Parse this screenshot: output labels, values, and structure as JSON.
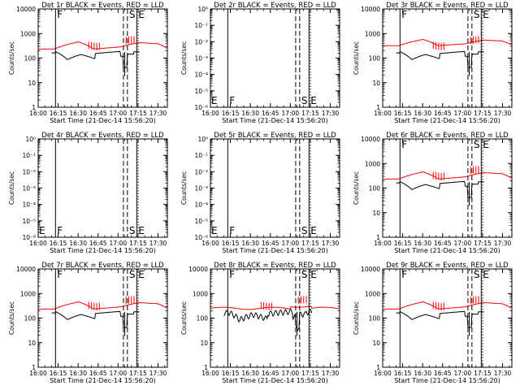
{
  "page": {
    "background": "#ffffff"
  },
  "chart_data": [
    {
      "type": "line",
      "title": "Det 1r BLACK = Events, RED = LLD",
      "xlabel": "Start Time (21-Dec-14 15:56:20)",
      "ylabel": "Counts/sec",
      "yscale": "log",
      "xlim": [
        "16:00",
        "17:37"
      ],
      "yticks": [
        "1",
        "10",
        "100",
        "1000",
        "10000"
      ],
      "ylim": [
        1,
        12000
      ],
      "xticks": [
        "16:00",
        "16:15",
        "16:30",
        "16:45",
        "17:00",
        "17:15",
        "17:30"
      ],
      "markers": [
        {
          "time": "16:13",
          "style": "solid",
          "label": "F",
          "label_pos": "top"
        },
        {
          "time": "17:04",
          "style": "dashed",
          "label": ""
        },
        {
          "time": "17:07",
          "style": "dashed",
          "label": "S",
          "label_pos": "top"
        },
        {
          "time": "17:14",
          "style": "solid",
          "label": "E",
          "label_pos": "top"
        },
        {
          "time": "17:15",
          "style": "dotted",
          "label": ""
        }
      ],
      "series": [
        {
          "color": "#ff0000",
          "profile": "lld"
        },
        {
          "color": "#000000",
          "profile": "events"
        }
      ]
    },
    {
      "type": "line",
      "title": "Det 2r BLACK = Events, RED = LLD",
      "xlabel": "Start Time (21-Dec-14 15:56:20)",
      "ylabel": "Counts/sec",
      "yscale": "log",
      "xlim": [
        "16:00",
        "17:37"
      ],
      "yticks": [
        "10⁻⁶",
        "10⁻⁵",
        "10⁻⁴",
        "10⁻³",
        "10⁻²",
        "10⁻¹",
        "10⁰"
      ],
      "ylim": [
        1e-06,
        1
      ],
      "xticks": [
        "16:00",
        "16:15",
        "16:30",
        "16:45",
        "17:00",
        "17:15",
        "17:30"
      ],
      "corner_label": "E",
      "markers": [
        {
          "time": "16:13",
          "style": "solid",
          "label": "F",
          "label_pos": "bottom"
        },
        {
          "time": "17:04",
          "style": "dashed",
          "label": ""
        },
        {
          "time": "17:07",
          "style": "dashed",
          "label": "S",
          "label_pos": "bottom"
        },
        {
          "time": "17:14",
          "style": "solid",
          "label": "E",
          "label_pos": "bottom"
        },
        {
          "time": "17:15",
          "style": "dotted",
          "label": ""
        }
      ],
      "series": []
    },
    {
      "type": "line",
      "title": "Det 3r BLACK = Events, RED = LLD",
      "xlabel": "Start Time (21-Dec-14 15:56:20)",
      "ylabel": "Counts/sec",
      "yscale": "log",
      "xlim": [
        "16:00",
        "17:37"
      ],
      "yticks": [
        "1",
        "10",
        "100",
        "1000",
        "10000"
      ],
      "ylim": [
        1,
        12000
      ],
      "xticks": [
        "16:00",
        "16:15",
        "16:30",
        "16:45",
        "17:00",
        "17:15",
        "17:30"
      ],
      "markers": [
        {
          "time": "16:13",
          "style": "solid",
          "label": "F",
          "label_pos": "top"
        },
        {
          "time": "17:04",
          "style": "dashed",
          "label": ""
        },
        {
          "time": "17:07",
          "style": "dashed",
          "label": "S",
          "label_pos": "top"
        },
        {
          "time": "17:14",
          "style": "solid",
          "label": "E",
          "label_pos": "top"
        },
        {
          "time": "17:15",
          "style": "dotted",
          "label": ""
        }
      ],
      "series": [
        {
          "color": "#ff0000",
          "profile": "lld_high"
        },
        {
          "color": "#000000",
          "profile": "events"
        }
      ]
    },
    {
      "type": "line",
      "title": "Det 4r BLACK = Events, RED = LLD",
      "xlabel": "Start Time (21-Dec-14 15:56:20)",
      "ylabel": "Counts/sec",
      "yscale": "log",
      "xlim": [
        "16:00",
        "17:37"
      ],
      "yticks": [
        "10⁻⁶",
        "10⁻⁵",
        "10⁻⁴",
        "10⁻³",
        "10⁻²",
        "10⁻¹",
        "10⁰"
      ],
      "ylim": [
        1e-06,
        1
      ],
      "xticks": [
        "16:00",
        "16:15",
        "16:30",
        "16:45",
        "17:00",
        "17:15",
        "17:30"
      ],
      "corner_label": "E",
      "markers": [
        {
          "time": "16:13",
          "style": "solid",
          "label": "F",
          "label_pos": "bottom"
        },
        {
          "time": "17:04",
          "style": "dashed",
          "label": ""
        },
        {
          "time": "17:07",
          "style": "dashed",
          "label": "S",
          "label_pos": "bottom"
        },
        {
          "time": "17:14",
          "style": "solid",
          "label": "E",
          "label_pos": "bottom"
        },
        {
          "time": "17:15",
          "style": "dotted",
          "label": ""
        }
      ],
      "series": []
    },
    {
      "type": "line",
      "title": "Det 5r BLACK = Events, RED = LLD",
      "xlabel": "Start Time (21-Dec-14 15:56:20)",
      "ylabel": "Counts/sec",
      "yscale": "log",
      "xlim": [
        "16:00",
        "17:37"
      ],
      "yticks": [
        "10⁻⁶",
        "10⁻⁵",
        "10⁻⁴",
        "10⁻³",
        "10⁻²",
        "10⁻¹",
        "10⁰"
      ],
      "ylim": [
        1e-06,
        1
      ],
      "xticks": [
        "16:00",
        "16:15",
        "16:30",
        "16:45",
        "17:00",
        "17:15",
        "17:30"
      ],
      "corner_label": "E",
      "markers": [
        {
          "time": "16:13",
          "style": "solid",
          "label": "F",
          "label_pos": "bottom"
        },
        {
          "time": "17:04",
          "style": "dashed",
          "label": ""
        },
        {
          "time": "17:07",
          "style": "dashed",
          "label": "S",
          "label_pos": "bottom"
        },
        {
          "time": "17:14",
          "style": "solid",
          "label": "E",
          "label_pos": "bottom"
        },
        {
          "time": "17:15",
          "style": "dotted",
          "label": ""
        }
      ],
      "series": []
    },
    {
      "type": "line",
      "title": "Det 6r BLACK = Events, RED = LLD",
      "xlabel": "Start Time (21-Dec-14 15:56:20)",
      "ylabel": "Counts/sec",
      "yscale": "log",
      "xlim": [
        "16:00",
        "17:37"
      ],
      "yticks": [
        "1",
        "10",
        "100",
        "1000",
        "10000"
      ],
      "ylim": [
        1,
        12000
      ],
      "xticks": [
        "16:00",
        "16:15",
        "16:30",
        "16:45",
        "17:00",
        "17:15",
        "17:30"
      ],
      "markers": [
        {
          "time": "16:13",
          "style": "solid",
          "label": "F",
          "label_pos": "top"
        },
        {
          "time": "17:04",
          "style": "dashed",
          "label": ""
        },
        {
          "time": "17:07",
          "style": "dashed",
          "label": "S",
          "label_pos": "top"
        },
        {
          "time": "17:14",
          "style": "solid",
          "label": "E",
          "label_pos": "top"
        },
        {
          "time": "17:15",
          "style": "dotted",
          "label": ""
        }
      ],
      "series": [
        {
          "color": "#ff0000",
          "profile": "lld"
        },
        {
          "color": "#000000",
          "profile": "events"
        }
      ]
    },
    {
      "type": "line",
      "title": "Det 7r BLACK = Events, RED = LLD",
      "xlabel": "Start Time (21-Dec-14 15:56:20)",
      "ylabel": "Counts/sec",
      "yscale": "log",
      "xlim": [
        "16:00",
        "17:37"
      ],
      "yticks": [
        "1",
        "10",
        "100",
        "1000",
        "10000"
      ],
      "ylim": [
        1,
        12000
      ],
      "xticks": [
        "16:00",
        "16:15",
        "16:30",
        "16:45",
        "17:00",
        "17:15",
        "17:30"
      ],
      "markers": [
        {
          "time": "16:13",
          "style": "solid",
          "label": "F",
          "label_pos": "top"
        },
        {
          "time": "17:04",
          "style": "dashed",
          "label": ""
        },
        {
          "time": "17:07",
          "style": "dashed",
          "label": "S",
          "label_pos": "top"
        },
        {
          "time": "17:14",
          "style": "solid",
          "label": "E",
          "label_pos": "top"
        },
        {
          "time": "17:15",
          "style": "dotted",
          "label": ""
        }
      ],
      "series": [
        {
          "color": "#ff0000",
          "profile": "lld"
        },
        {
          "color": "#000000",
          "profile": "events"
        }
      ]
    },
    {
      "type": "line",
      "title": "Det 8r BLACK = Events, RED = LLD",
      "xlabel": "Start Time (21-Dec-14 15:56:20)",
      "ylabel": "Counts/sec",
      "yscale": "log",
      "xlim": [
        "16:00",
        "17:37"
      ],
      "yticks": [
        "1",
        "10",
        "100",
        "1000",
        "10000"
      ],
      "ylim": [
        1,
        12000
      ],
      "xticks": [
        "16:00",
        "16:15",
        "16:30",
        "16:45",
        "17:00",
        "17:15",
        "17:30"
      ],
      "markers": [
        {
          "time": "16:13",
          "style": "solid",
          "label": "F",
          "label_pos": "top"
        },
        {
          "time": "17:04",
          "style": "dashed",
          "label": ""
        },
        {
          "time": "17:07",
          "style": "dashed",
          "label": "S",
          "label_pos": "top"
        },
        {
          "time": "17:14",
          "style": "solid",
          "label": "E",
          "label_pos": "top"
        },
        {
          "time": "17:15",
          "style": "dotted",
          "label": ""
        }
      ],
      "series": [
        {
          "color": "#ff0000",
          "profile": "lld_flat"
        },
        {
          "color": "#000000",
          "profile": "events_noisy"
        }
      ]
    },
    {
      "type": "line",
      "title": "Det 9r BLACK = Events, RED = LLD",
      "xlabel": "Start Time (21-Dec-14 15:56:20)",
      "ylabel": "Counts/sec",
      "yscale": "log",
      "xlim": [
        "16:00",
        "17:37"
      ],
      "yticks": [
        "1",
        "10",
        "100",
        "1000",
        "10000"
      ],
      "ylim": [
        1,
        12000
      ],
      "xticks": [
        "16:00",
        "16:15",
        "16:30",
        "16:45",
        "17:00",
        "17:15",
        "17:30"
      ],
      "markers": [
        {
          "time": "16:13",
          "style": "solid",
          "label": "F",
          "label_pos": "top"
        },
        {
          "time": "17:04",
          "style": "dashed",
          "label": ""
        },
        {
          "time": "17:07",
          "style": "dashed",
          "label": "S",
          "label_pos": "top"
        },
        {
          "time": "17:14",
          "style": "solid",
          "label": "E",
          "label_pos": "top"
        },
        {
          "time": "17:15",
          "style": "dotted",
          "label": ""
        }
      ],
      "series": [
        {
          "color": "#ff0000",
          "profile": "lld"
        },
        {
          "color": "#000000",
          "profile": "events"
        }
      ]
    }
  ]
}
